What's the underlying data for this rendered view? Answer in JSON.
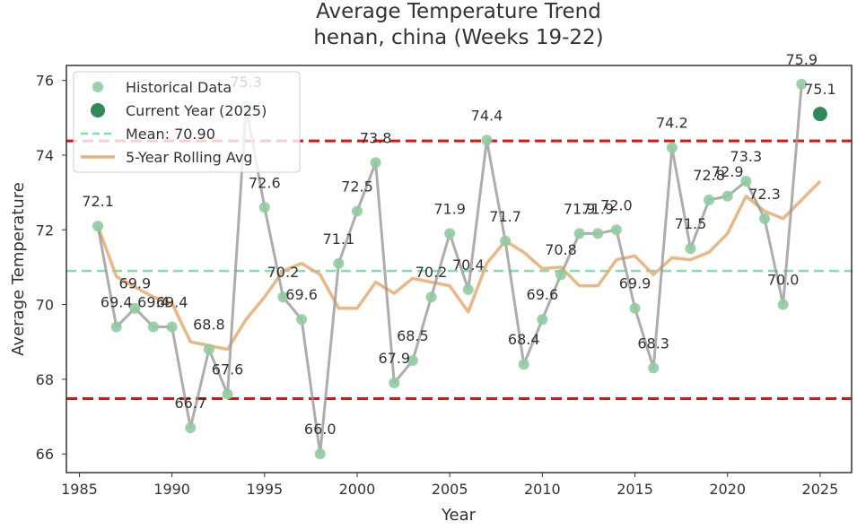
{
  "chart_data": {
    "type": "line",
    "title": "Average Temperature Trend",
    "subtitle": "henan, china (Weeks 19-22)",
    "xlabel": "Year",
    "ylabel": "Average Temperature",
    "xlim": [
      1984.3,
      2026.7
    ],
    "ylim": [
      65.5,
      76.4
    ],
    "xticks": [
      1985,
      1990,
      1995,
      2000,
      2005,
      2010,
      2015,
      2020,
      2025
    ],
    "yticks": [
      66,
      68,
      70,
      72,
      74,
      76
    ],
    "grid": false,
    "legend_position": "top-left",
    "legend": [
      "Historical Data",
      "Current Year (2025)",
      "Mean: 70.90",
      "5-Year Rolling Avg"
    ],
    "colors": {
      "historical": "#8fcc9e",
      "historical_line": "#999999",
      "current": "#2e8b57",
      "mean": "#7ee0b0",
      "threshold": "#dd1111",
      "rolling": "#e8b07a"
    },
    "series": [
      {
        "name": "Historical Data",
        "x": [
          1986,
          1987,
          1988,
          1989,
          1990,
          1991,
          1992,
          1993,
          1994,
          1995,
          1996,
          1997,
          1998,
          1999,
          2000,
          2001,
          2002,
          2003,
          2004,
          2005,
          2006,
          2007,
          2008,
          2009,
          2010,
          2011,
          2012,
          2013,
          2014,
          2015,
          2016,
          2017,
          2018,
          2019,
          2020,
          2021,
          2022,
          2023,
          2024
        ],
        "y": [
          72.1,
          69.4,
          69.9,
          69.4,
          69.4,
          66.7,
          68.8,
          67.6,
          75.3,
          72.6,
          70.2,
          69.6,
          66.0,
          71.1,
          72.5,
          73.8,
          67.9,
          68.5,
          70.2,
          71.9,
          70.4,
          74.4,
          71.7,
          68.4,
          69.6,
          70.8,
          71.9,
          71.9,
          72.0,
          69.9,
          68.3,
          74.2,
          71.5,
          72.8,
          72.9,
          73.3,
          72.3,
          70.0,
          75.9
        ]
      },
      {
        "name": "Current Year (2025)",
        "x": [
          2025
        ],
        "y": [
          75.1
        ]
      },
      {
        "name": "5-Year Rolling Avg",
        "x": [
          1986,
          1987,
          1988,
          1989,
          1990,
          1991,
          1992,
          1993,
          1994,
          1995,
          1996,
          1997,
          1998,
          1999,
          2000,
          2001,
          2002,
          2003,
          2004,
          2005,
          2006,
          2007,
          2008,
          2009,
          2010,
          2011,
          2012,
          2013,
          2014,
          2015,
          2016,
          2017,
          2018,
          2019,
          2020,
          2021,
          2022,
          2023,
          2024,
          2025
        ],
        "y": [
          72.1,
          70.75,
          70.47,
          70.2,
          70.04,
          69.0,
          68.9,
          68.8,
          69.6,
          70.2,
          70.9,
          71.1,
          70.8,
          69.9,
          69.9,
          70.6,
          70.3,
          70.7,
          70.6,
          70.5,
          69.8,
          71.1,
          71.7,
          71.4,
          70.96,
          71.0,
          70.5,
          70.5,
          71.2,
          71.3,
          70.8,
          71.25,
          71.2,
          71.4,
          71.9,
          72.9,
          72.5,
          72.3,
          72.8,
          73.3
        ]
      }
    ],
    "reference_lines": [
      {
        "name": "Mean: 70.90",
        "y": 70.9
      },
      {
        "name": "upper threshold",
        "y": 74.38
      },
      {
        "name": "lower threshold",
        "y": 67.48
      }
    ],
    "data_labels": [
      {
        "x": 1986,
        "y": 72.1,
        "text": "72.1"
      },
      {
        "x": 1987,
        "y": 69.4,
        "text": "69.4"
      },
      {
        "x": 1988,
        "y": 69.9,
        "text": "69.9"
      },
      {
        "x": 1989,
        "y": 69.4,
        "text": "69.4"
      },
      {
        "x": 1990,
        "y": 69.4,
        "text": "69.4"
      },
      {
        "x": 1991,
        "y": 66.7,
        "text": "66.7"
      },
      {
        "x": 1992,
        "y": 68.8,
        "text": "68.8"
      },
      {
        "x": 1993,
        "y": 67.6,
        "text": "67.6"
      },
      {
        "x": 1994,
        "y": 75.3,
        "text": "75.3"
      },
      {
        "x": 1995,
        "y": 72.6,
        "text": "72.6"
      },
      {
        "x": 1996,
        "y": 70.2,
        "text": "70.2"
      },
      {
        "x": 1997,
        "y": 69.6,
        "text": "69.6"
      },
      {
        "x": 1998,
        "y": 66.0,
        "text": "66.0"
      },
      {
        "x": 1999,
        "y": 71.1,
        "text": "71.1"
      },
      {
        "x": 2000,
        "y": 72.5,
        "text": "72.5"
      },
      {
        "x": 2001,
        "y": 73.8,
        "text": "73.8"
      },
      {
        "x": 2002,
        "y": 67.9,
        "text": "67.9"
      },
      {
        "x": 2003,
        "y": 68.5,
        "text": "68.5"
      },
      {
        "x": 2004,
        "y": 70.2,
        "text": "70.2"
      },
      {
        "x": 2005,
        "y": 71.9,
        "text": "71.9"
      },
      {
        "x": 2006,
        "y": 70.4,
        "text": "70.4"
      },
      {
        "x": 2007,
        "y": 74.4,
        "text": "74.4"
      },
      {
        "x": 2008,
        "y": 71.7,
        "text": "71.7"
      },
      {
        "x": 2009,
        "y": 68.4,
        "text": "68.4"
      },
      {
        "x": 2010,
        "y": 69.6,
        "text": "69.6"
      },
      {
        "x": 2011,
        "y": 70.8,
        "text": "70.8"
      },
      {
        "x": 2012,
        "y": 71.9,
        "text": "71.9"
      },
      {
        "x": 2013,
        "y": 71.9,
        "text": "71.9"
      },
      {
        "x": 2014,
        "y": 72.0,
        "text": "72.0"
      },
      {
        "x": 2015,
        "y": 69.9,
        "text": "69.9"
      },
      {
        "x": 2016,
        "y": 68.3,
        "text": "68.3"
      },
      {
        "x": 2017,
        "y": 74.2,
        "text": "74.2"
      },
      {
        "x": 2018,
        "y": 71.5,
        "text": "71.5"
      },
      {
        "x": 2019,
        "y": 72.8,
        "text": "72.8"
      },
      {
        "x": 2020,
        "y": 72.9,
        "text": "72.9"
      },
      {
        "x": 2021,
        "y": 73.3,
        "text": "73.3"
      },
      {
        "x": 2022,
        "y": 72.3,
        "text": "72.3"
      },
      {
        "x": 2023,
        "y": 70.0,
        "text": "70.0"
      },
      {
        "x": 2024,
        "y": 75.9,
        "text": "75.9"
      },
      {
        "x": 2025,
        "y": 75.1,
        "text": "75.1"
      }
    ]
  }
}
